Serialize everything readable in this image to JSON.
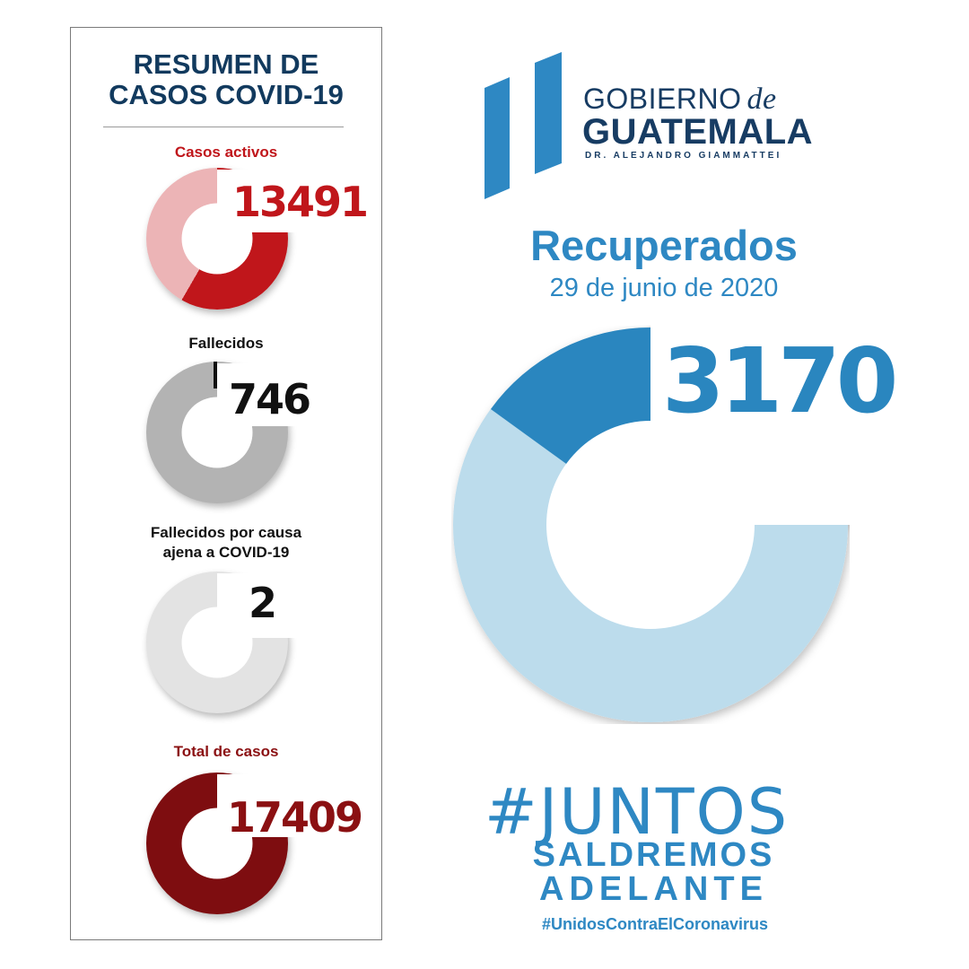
{
  "summary": {
    "title_line1": "RESUMEN DE",
    "title_line2": "CASOS COVID-19",
    "items": [
      {
        "label": "Casos activos",
        "value": "13491",
        "label_color": "#c0161b",
        "value_color": "#c0161b",
        "ring_color": "#c0161b",
        "ring_light": "#ecb4b6"
      },
      {
        "label": "Fallecidos",
        "value": "746",
        "label_color": "#111111",
        "value_color": "#111111",
        "ring_color": "#b3b3b3"
      },
      {
        "label_line1": "Fallecidos por causa",
        "label_line2": "ajena a COVID-19",
        "value": "2",
        "label_color": "#111111",
        "value_color": "#111111",
        "ring_color": "#e3e3e3"
      },
      {
        "label": "Total de casos",
        "value": "17409",
        "label_color": "#8b1012",
        "value_color": "#8b1012",
        "ring_color": "#7e0d10"
      }
    ]
  },
  "logo": {
    "line1": "GOBIERNO",
    "de": "de",
    "line2": "GUATEMALA",
    "line3": "DR. ALEJANDRO GIAMMATTEI",
    "color": "#173c63",
    "bars_color": "#2e88c3"
  },
  "recuperados": {
    "title": "Recuperados",
    "date": "29 de junio de 2020",
    "value": "3170",
    "color": "#2e88c3",
    "ring_dark": "#2a86bf",
    "ring_light": "#bcdcec"
  },
  "slogan": {
    "line1": "#JUNTOS",
    "line2": "SALDREMOS",
    "line3": "ADELANTE",
    "hashtag": "#UnidosContraElCoronavirus"
  }
}
